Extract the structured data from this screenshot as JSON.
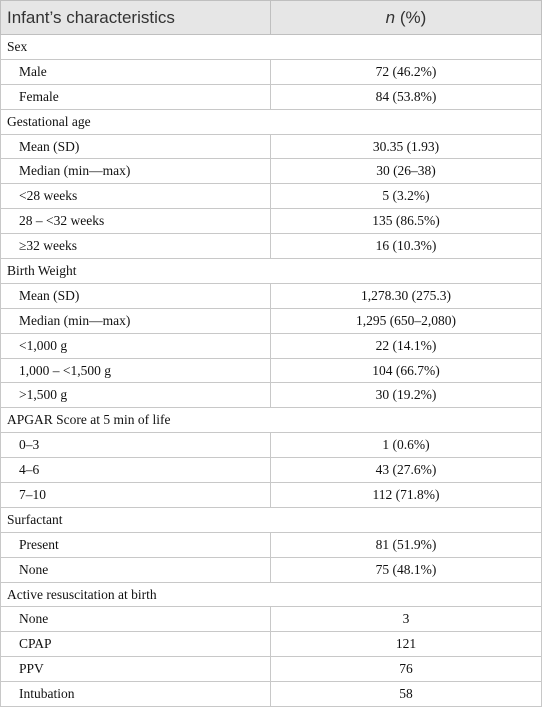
{
  "header": {
    "label": "Infant’s characteristics",
    "n": "n",
    "percent": "(%)"
  },
  "sections": [
    {
      "title": "Sex",
      "rows": [
        [
          "Male",
          "72 (46.2%)"
        ],
        [
          "Female",
          "84 (53.8%)"
        ]
      ]
    },
    {
      "title": "Gestational age",
      "rows": [
        [
          "Mean (SD)",
          "30.35 (1.93)"
        ],
        [
          "Median (min—max)",
          "30 (26–38)"
        ],
        [
          "<28 weeks",
          "5 (3.2%)"
        ],
        [
          "28 – <32 weeks",
          "135 (86.5%)"
        ],
        [
          "≥32 weeks",
          "16 (10.3%)"
        ]
      ]
    },
    {
      "title": "Birth Weight",
      "rows": [
        [
          "Mean (SD)",
          "1,278.30 (275.3)"
        ],
        [
          "Median (min—max)",
          "1,295 (650–2,080)"
        ],
        [
          "<1,000 g",
          "22 (14.1%)"
        ],
        [
          "1,000 – <1,500 g",
          "104 (66.7%)"
        ],
        [
          ">1,500 g",
          "30 (19.2%)"
        ]
      ]
    },
    {
      "title": "APGAR Score at 5 min of life",
      "rows": [
        [
          "0–3",
          "1 (0.6%)"
        ],
        [
          "4–6",
          "43 (27.6%)"
        ],
        [
          "7–10",
          "112 (71.8%)"
        ]
      ]
    },
    {
      "title": "Surfactant",
      "rows": [
        [
          "Present",
          "81 (51.9%)"
        ],
        [
          "None",
          "75 (48.1%)"
        ]
      ]
    },
    {
      "title": "Active resuscitation at birth",
      "rows": [
        [
          "None",
          "3"
        ],
        [
          "CPAP",
          "121"
        ],
        [
          "PPV",
          "76"
        ],
        [
          "Intubation",
          "58"
        ]
      ]
    }
  ]
}
